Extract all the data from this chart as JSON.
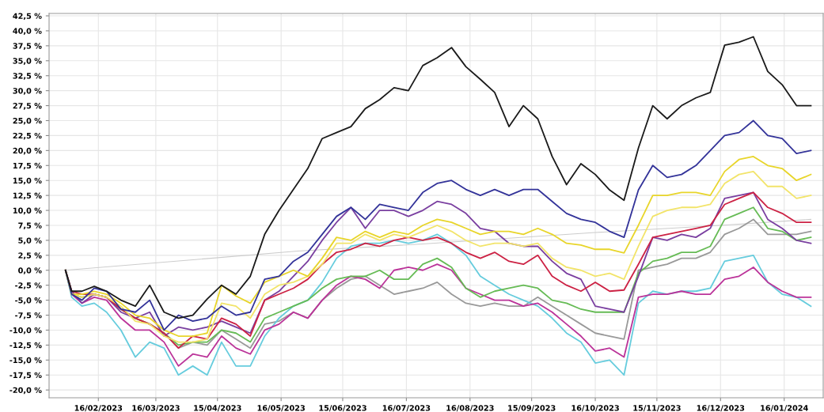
{
  "chart_data": {
    "type": "line",
    "grid": true,
    "marker": "none",
    "line_style": "solid",
    "x": [
      "2023-01-31",
      "2023-02-03",
      "2023-02-08",
      "2023-02-14",
      "2023-02-20",
      "2023-02-27",
      "2023-03-06",
      "2023-03-13",
      "2023-03-20",
      "2023-03-27",
      "2023-04-03",
      "2023-04-10",
      "2023-04-17",
      "2023-04-24",
      "2023-05-01",
      "2023-05-08",
      "2023-05-15",
      "2023-05-22",
      "2023-05-29",
      "2023-06-05",
      "2023-06-12",
      "2023-06-19",
      "2023-06-26",
      "2023-07-03",
      "2023-07-10",
      "2023-07-17",
      "2023-07-24",
      "2023-07-31",
      "2023-08-07",
      "2023-08-14",
      "2023-08-21",
      "2023-08-28",
      "2023-09-04",
      "2023-09-11",
      "2023-09-18",
      "2023-09-25",
      "2023-10-02",
      "2023-10-09",
      "2023-10-16",
      "2023-10-23",
      "2023-10-30",
      "2023-11-06",
      "2023-11-13",
      "2023-11-20",
      "2023-11-27",
      "2023-12-04",
      "2023-12-11",
      "2023-12-18",
      "2023-12-25",
      "2024-01-01",
      "2024-01-08",
      "2024-01-15",
      "2024-01-22",
      "2024-01-29"
    ],
    "xlim": [
      "2023-01-23",
      "2024-02-04"
    ],
    "xticks": [
      {
        "value": "2023-02-16",
        "label": "16/02/2023"
      },
      {
        "value": "2023-03-16",
        "label": "16/03/2023"
      },
      {
        "value": "2023-04-15",
        "label": "15/04/2023"
      },
      {
        "value": "2023-05-16",
        "label": "16/05/2023"
      },
      {
        "value": "2023-06-15",
        "label": "15/06/2023"
      },
      {
        "value": "2023-07-16",
        "label": "16/07/2023"
      },
      {
        "value": "2023-08-16",
        "label": "16/08/2023"
      },
      {
        "value": "2023-09-15",
        "label": "15/09/2023"
      },
      {
        "value": "2023-10-16",
        "label": "16/10/2023"
      },
      {
        "value": "2023-11-15",
        "label": "15/11/2023"
      },
      {
        "value": "2023-12-16",
        "label": "16/12/2023"
      },
      {
        "value": "2024-01-16",
        "label": "16/01/2024"
      }
    ],
    "ylim": [
      -21.3,
      42.9
    ],
    "yticks": [
      {
        "value": -20,
        "label": "-20,0 %"
      },
      {
        "value": -17.5,
        "label": "-17,5 %"
      },
      {
        "value": -15,
        "label": "-15,0 %"
      },
      {
        "value": -12.5,
        "label": "-12,5 %"
      },
      {
        "value": -10,
        "label": "-10,0 %"
      },
      {
        "value": -7.5,
        "label": "-7,5 %"
      },
      {
        "value": -5,
        "label": "-5,0 %"
      },
      {
        "value": -2.5,
        "label": "-2,5 %"
      },
      {
        "value": 0,
        "label": "0,0 %"
      },
      {
        "value": 2.5,
        "label": "2,5 %"
      },
      {
        "value": 5,
        "label": "5,0 %"
      },
      {
        "value": 7.5,
        "label": "7,5 %"
      },
      {
        "value": 10,
        "label": "10,0 %"
      },
      {
        "value": 12.5,
        "label": "12,5 %"
      },
      {
        "value": 15,
        "label": "15,0 %"
      },
      {
        "value": 17.5,
        "label": "17,5 %"
      },
      {
        "value": 20,
        "label": "20,0 %"
      },
      {
        "value": 22.5,
        "label": "22,5 %"
      },
      {
        "value": 25,
        "label": "25,0 %"
      },
      {
        "value": 27.5,
        "label": "27,5 %"
      },
      {
        "value": 30,
        "label": "30,0 %"
      },
      {
        "value": 32.5,
        "label": "32,5 %"
      },
      {
        "value": 35,
        "label": "35,0 %"
      },
      {
        "value": 37.5,
        "label": "37,5 %"
      },
      {
        "value": 40,
        "label": "40,0 %"
      },
      {
        "value": 42.5,
        "label": "42,5 %"
      }
    ],
    "series": [
      {
        "color": "#cccccc",
        "x": [
          "2023-01-31",
          "2023-05-24",
          "2023-07-24",
          "2023-10-16",
          "2023-12-16",
          "2024-01-29"
        ],
        "values": [
          0,
          3.2,
          4.4,
          6.3,
          7.5,
          8.5
        ]
      },
      {
        "color": "#999999",
        "values": [
          0,
          -4,
          -4.5,
          -4,
          -4.5,
          -6.5,
          -8,
          -9,
          -10.5,
          -13,
          -12,
          -12.5,
          -10,
          -11.5,
          -13,
          -9,
          -8.5,
          -7,
          -8,
          -5,
          -3,
          -1.5,
          -1,
          -2.5,
          -4,
          -3.5,
          -3,
          -2,
          -4,
          -5.5,
          -6,
          -5.5,
          -6,
          -6,
          -4.5,
          -6,
          -7.5,
          -9,
          -10.5,
          -11,
          -11.5,
          0,
          0.5,
          1,
          2,
          2,
          3,
          6,
          7,
          8.5,
          6,
          6,
          6,
          6.5
        ]
      },
      {
        "color": "#66ccdd",
        "values": [
          0,
          -4.5,
          -6,
          -5.5,
          -7,
          -10,
          -14.5,
          -12,
          -13,
          -17.5,
          -16,
          -17.5,
          -12,
          -16,
          -16,
          -11,
          -8,
          -6,
          -5,
          -2,
          2,
          4,
          4.5,
          4.5,
          5,
          4.5,
          5,
          6,
          4.5,
          2.5,
          -1,
          -2.5,
          -4,
          -5,
          -6,
          -8,
          -10.5,
          -12,
          -15.5,
          -15,
          -17.5,
          -5.5,
          -3.5,
          -4,
          -3.5,
          -3.5,
          -3,
          1.5,
          2,
          2.5,
          -2,
          -4,
          -4.5,
          -6
        ]
      },
      {
        "color": "#bb3399",
        "values": [
          0,
          -4,
          -5.5,
          -4.5,
          -5,
          -8,
          -10,
          -10,
          -12,
          -16,
          -14,
          -14.5,
          -11,
          -13,
          -14,
          -10,
          -9,
          -7,
          -8,
          -5,
          -2.5,
          -1,
          -1.5,
          -3,
          0,
          0.5,
          0,
          1,
          0,
          -3,
          -4,
          -5,
          -5,
          -6,
          -5.5,
          -7,
          -9,
          -11,
          -13.5,
          -13,
          -14.5,
          -4.5,
          -4,
          -4,
          -3.5,
          -4,
          -4,
          -1.5,
          -1,
          0.5,
          -2,
          -3.5,
          -4.5,
          -4.5
        ]
      },
      {
        "color": "#66bb55",
        "values": [
          0,
          -4,
          -4.5,
          -4,
          -4.5,
          -6.5,
          -8,
          -9,
          -10.5,
          -12.5,
          -12,
          -12,
          -10,
          -10.5,
          -12,
          -8,
          -7,
          -6,
          -5,
          -3,
          -1.5,
          -1,
          -1,
          0,
          -1.5,
          -1.5,
          1,
          2,
          0.5,
          -3,
          -4.5,
          -3.5,
          -3,
          -2.5,
          -3,
          -5,
          -5.5,
          -6.5,
          -7,
          -7,
          -7,
          -0.5,
          1.5,
          2,
          3,
          3,
          4,
          8.5,
          9.5,
          10.5,
          7,
          6.5,
          5,
          5.5
        ]
      },
      {
        "color": "#7a3fa0",
        "values": [
          0,
          -3.5,
          -5.5,
          -4,
          -4.5,
          -7,
          -8,
          -7,
          -11,
          -9.5,
          -10,
          -9.5,
          -8.5,
          -9.5,
          -10.5,
          -5,
          -3.5,
          -1,
          1.5,
          5,
          8,
          10.5,
          7,
          10,
          10,
          9,
          10,
          11.5,
          11,
          9.5,
          7,
          6.5,
          4.5,
          4,
          4,
          1.5,
          -0.5,
          -1.5,
          -6,
          -6.5,
          -7,
          -1,
          5.5,
          5,
          6,
          5.5,
          7,
          12,
          12.5,
          13,
          8.5,
          7,
          5,
          4.5
        ]
      },
      {
        "color": "#cc2244",
        "values": [
          0,
          -3.5,
          -4,
          -4,
          -4.5,
          -6.5,
          -8,
          -9,
          -10.5,
          -13,
          -11,
          -11.5,
          -8,
          -9,
          -11,
          -5,
          -4,
          -3,
          -1.5,
          1,
          3,
          3.5,
          4.5,
          4,
          5,
          5.5,
          5,
          5.5,
          4.5,
          3,
          2,
          3,
          1.5,
          1,
          2.5,
          -1,
          -2.5,
          -3.5,
          -2,
          -3.5,
          -3.3,
          1,
          5.5,
          6,
          6.5,
          7,
          7.5,
          11,
          12,
          13,
          10.5,
          9.5,
          8,
          8
        ]
      },
      {
        "color": "#f2e46a",
        "values": [
          0,
          -4,
          -4.5,
          -4,
          -4.5,
          -6,
          -8.5,
          -9,
          -11,
          -12,
          -12,
          -11.5,
          -5.5,
          -6,
          -8,
          -4,
          -2.5,
          -2,
          -1,
          1,
          4.5,
          4.5,
          6,
          5,
          6,
          5.5,
          6.5,
          7.5,
          6.5,
          5,
          4,
          4.5,
          4.5,
          4,
          4.5,
          2,
          0.5,
          0,
          -1,
          -0.5,
          -1.5,
          4,
          9,
          10,
          10.5,
          10.5,
          11,
          14.5,
          16,
          16.5,
          14,
          14,
          12,
          12.5
        ]
      },
      {
        "color": "#e8d52a",
        "values": [
          0,
          -4,
          -4,
          -3.5,
          -4,
          -5.5,
          -7.5,
          -8,
          -10,
          -11,
          -11,
          -10.5,
          -2.5,
          -4.3,
          -5.5,
          -2,
          -1,
          0,
          -1,
          2,
          5.5,
          5,
          6.5,
          5.5,
          6.5,
          6,
          7.5,
          8.5,
          8,
          7,
          6,
          6.5,
          6.5,
          6,
          7,
          6,
          4.5,
          4.2,
          3.5,
          3.5,
          2.9,
          7.5,
          12.5,
          12.5,
          13,
          13,
          12.5,
          16.5,
          18.5,
          19,
          17.5,
          17,
          15,
          16
        ]
      },
      {
        "color": "#333399",
        "values": [
          0,
          -4,
          -5,
          -3,
          -3.5,
          -6.5,
          -7,
          -5,
          -10,
          -7.5,
          -8.5,
          -8,
          -6,
          -7.5,
          -7,
          -1.5,
          -1,
          1.5,
          3,
          6,
          9,
          10.5,
          8.5,
          11,
          10.5,
          10,
          13,
          14.5,
          15,
          13.5,
          12.5,
          13.5,
          12.5,
          13.5,
          13.5,
          11.5,
          9.5,
          8.5,
          8,
          6.5,
          5.5,
          13.4,
          17.5,
          15.5,
          16,
          17.5,
          20,
          22.5,
          23,
          25,
          22.5,
          22,
          19.5,
          20
        ]
      },
      {
        "color": "#1a1a1a",
        "values": [
          0,
          -3.5,
          -3.5,
          -2.7,
          -3.5,
          -5,
          -6,
          -2.5,
          -7,
          -8,
          -7.5,
          -4.8,
          -2.5,
          -4,
          -1,
          6,
          10,
          13.5,
          17,
          22,
          23,
          24,
          27,
          28.5,
          30.5,
          30,
          34.2,
          35.5,
          37.2,
          34,
          31.9,
          29.7,
          24,
          27.5,
          25.3,
          19,
          14.3,
          17.8,
          16,
          13.4,
          11.7,
          20.4,
          27.5,
          25.3,
          27.5,
          28.8,
          29.7,
          37.6,
          38.1,
          39,
          33.2,
          31,
          27.5,
          27.5
        ]
      }
    ]
  }
}
